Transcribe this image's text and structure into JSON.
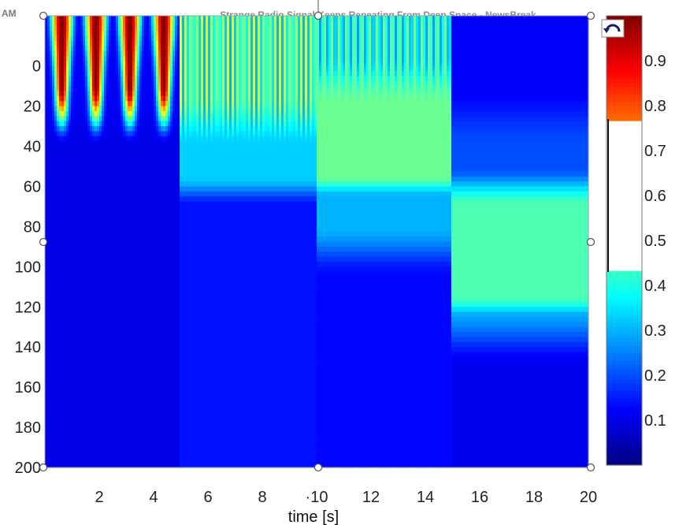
{
  "header": {
    "corner_text": "AM",
    "article_title": "Strange Radio Signal Keeps Repeating From Deep Space - NewsBreak"
  },
  "icons": {
    "rotate_handle": "rotate-arrow-icon",
    "resize_handle": "resize-handle-icon"
  },
  "chart_data": {
    "type": "heatmap",
    "title": "",
    "xlabel": "time [s]",
    "ylabel": "",
    "xlim": [
      0,
      20
    ],
    "ylim": [
      200,
      -25
    ],
    "x_ticks": [
      {
        "value": 2,
        "label": "2"
      },
      {
        "value": 4,
        "label": "4"
      },
      {
        "value": 6,
        "label": "6"
      },
      {
        "value": 8,
        "label": "8"
      },
      {
        "value": 10,
        "label": "·10"
      },
      {
        "value": 12,
        "label": "12"
      },
      {
        "value": 14,
        "label": "14"
      },
      {
        "value": 16,
        "label": "16"
      },
      {
        "value": 18,
        "label": "18"
      },
      {
        "value": 20,
        "label": "20"
      }
    ],
    "y_ticks": [
      {
        "value": 0,
        "label": "0"
      },
      {
        "value": 20,
        "label": "20"
      },
      {
        "value": 40,
        "label": "40"
      },
      {
        "value": 60,
        "label": "60"
      },
      {
        "value": 80,
        "label": "80"
      },
      {
        "value": 100,
        "label": "100"
      },
      {
        "value": 120,
        "label": "120"
      },
      {
        "value": 140,
        "label": "140"
      },
      {
        "value": 160,
        "label": "160"
      },
      {
        "value": 180,
        "label": "180"
      },
      {
        "value": 200,
        "label": "200"
      }
    ],
    "colorbar": {
      "range": [
        0,
        1
      ],
      "ticks": [
        {
          "value": 0.1,
          "label": "0.1"
        },
        {
          "value": 0.2,
          "label": "0.2"
        },
        {
          "value": 0.3,
          "label": "0.3"
        },
        {
          "value": 0.4,
          "label": "0.4"
        },
        {
          "value": 0.5,
          "label": "0.5"
        },
        {
          "value": 0.6,
          "label": "0.6"
        },
        {
          "value": 0.7,
          "label": "0.7"
        },
        {
          "value": 0.8,
          "label": "0.8"
        },
        {
          "value": 0.9,
          "label": "0.9"
        }
      ],
      "blank_range": [
        0.43,
        0.77
      ],
      "colormap": "jet",
      "placement": "right"
    },
    "segments": [
      {
        "t_start": 0,
        "t_end": 5,
        "pulses": 4,
        "peak_value": 1.0,
        "low_value": 0.12,
        "high_until_y": 20,
        "fade_until_y": 40,
        "floor_value": 0.1
      },
      {
        "t_start": 5,
        "t_end": 10,
        "pulses": 26,
        "peak_value": 0.6,
        "low_value": 0.3,
        "high_until_y": 30,
        "band_value": 0.33,
        "band_y": [
          40,
          60
        ],
        "floor_value": 0.14
      },
      {
        "t_start": 10,
        "t_end": 15,
        "pulses": 18,
        "peak_value": 0.5,
        "low_value": 0.28,
        "band_value": 0.48,
        "band_y": [
          20,
          60
        ],
        "mid_value": 0.3,
        "mid_y": [
          60,
          90
        ],
        "floor_value": 0.13
      },
      {
        "t_start": 15,
        "t_end": 20,
        "pulses": 0,
        "top_value": 0.12,
        "band_value": 0.45,
        "band_y": [
          70,
          120
        ],
        "fade_value": 0.3,
        "fade_y": [
          120,
          140
        ],
        "floor_value": 0.11
      }
    ]
  }
}
